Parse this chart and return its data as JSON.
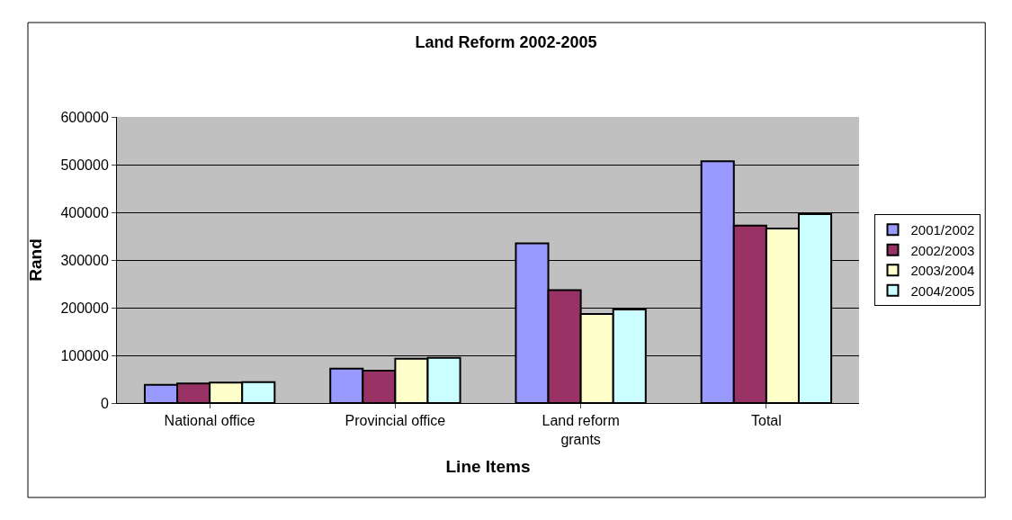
{
  "chart_data": {
    "type": "bar",
    "title": "Land Reform 2002-2005",
    "xlabel": "Line Items",
    "ylabel": "Rand",
    "categories": [
      "National office",
      "Provincial office",
      "Land reform grants",
      "Total"
    ],
    "series": [
      {
        "name": "2001/2002",
        "color": "#9999ff",
        "values": [
          38000,
          72000,
          335000,
          507000
        ]
      },
      {
        "name": "2002/2003",
        "color": "#993366",
        "values": [
          41000,
          68000,
          237000,
          372000
        ]
      },
      {
        "name": "2003/2004",
        "color": "#ffffcc",
        "values": [
          43000,
          93000,
          187000,
          366000
        ]
      },
      {
        "name": "2004/2005",
        "color": "#ccffff",
        "values": [
          44000,
          95000,
          196000,
          396000
        ]
      }
    ],
    "ylim": [
      0,
      600000
    ],
    "yticks": [
      0,
      100000,
      200000,
      300000,
      400000,
      500000,
      600000
    ],
    "grid": "y",
    "legend": "right"
  }
}
